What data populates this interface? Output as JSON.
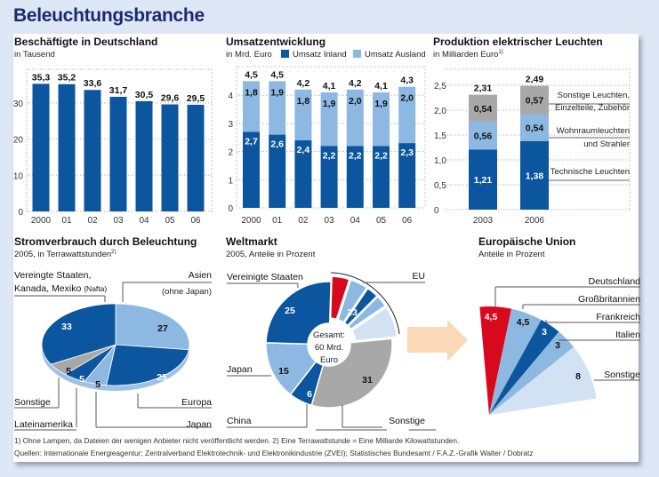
{
  "title": "Beleuchtungsbranche",
  "colors": {
    "dark_blue": "#0b569e",
    "light_blue": "#8db8e2",
    "gray": "#a8a8a8",
    "pale_blue": "#d3e2f3",
    "red": "#d8091d",
    "arrow": "#fbd9b7",
    "background": "#dde7f6"
  },
  "chart_data": [
    {
      "type": "bar",
      "title": "Beschäftigte in Deutschland",
      "subtitle": "in Tausend",
      "categories": [
        "2000",
        "01",
        "02",
        "03",
        "04",
        "05",
        "06"
      ],
      "values": [
        35.3,
        35.2,
        33.6,
        31.7,
        30.5,
        29.6,
        29.5
      ],
      "value_labels": [
        "35,3",
        "35,2",
        "33,6",
        "31,7",
        "30,5",
        "29,6",
        "29,5"
      ],
      "yticks": [
        "0",
        "10",
        "20",
        "30"
      ],
      "ylim": [
        0,
        40
      ],
      "grid": true
    },
    {
      "type": "bar",
      "stacked": true,
      "title": "Umsatzentwicklung",
      "subtitle": "in Mrd. Euro",
      "categories": [
        "2000",
        "01",
        "02",
        "03",
        "04",
        "05",
        "06"
      ],
      "series": [
        {
          "name": "Umsatz Inland",
          "values": [
            2.7,
            2.6,
            2.4,
            2.2,
            2.2,
            2.2,
            2.3
          ],
          "labels": [
            "2,7",
            "2,6",
            "2,4",
            "2,2",
            "2,2",
            "2,2",
            "2,3"
          ]
        },
        {
          "name": "Umsatz Ausland",
          "values": [
            1.8,
            1.9,
            1.8,
            1.9,
            2.0,
            1.9,
            2.0
          ],
          "labels": [
            "1,8",
            "1,9",
            "1,8",
            "1,9",
            "2,0",
            "1,9",
            "2,0"
          ]
        }
      ],
      "totals": [
        "4,5",
        "4,5",
        "4,2",
        "4,1",
        "4,2",
        "4,1",
        "4,3"
      ],
      "yticks": [
        "0",
        "1",
        "2",
        "3",
        "4"
      ],
      "ylim": [
        0,
        5
      ],
      "legend": "top",
      "grid": true
    },
    {
      "type": "bar",
      "stacked": true,
      "title": "Produktion elektrischer Leuchten",
      "subtitle": "in Milliarden Euro",
      "subtitle_footnote": "1)",
      "categories": [
        "2003",
        "2006"
      ],
      "series": [
        {
          "name": "Technische Leuchten",
          "name_lines": [
            "Technische Leuchten"
          ],
          "values": [
            1.21,
            1.38
          ],
          "labels": [
            "1,21",
            "1,38"
          ]
        },
        {
          "name": "Wohnraumleuchten und Strahler",
          "name_lines": [
            "Wohnraumleuchten",
            "und Strahler"
          ],
          "values": [
            0.56,
            0.54
          ],
          "labels": [
            "0,56",
            "0,54"
          ]
        },
        {
          "name": "Sonstige Leuchten, Einzelteile, Zubehör",
          "name_lines": [
            "Sonstige Leuchten,",
            "Einzelteile, Zubehör"
          ],
          "values": [
            0.54,
            0.57
          ],
          "labels": [
            "0,54",
            "0,57"
          ]
        }
      ],
      "totals": [
        "2,31",
        "2,49"
      ],
      "yticks": [
        "0",
        "0,5",
        "1,0",
        "1,5",
        "2,0",
        "2,5"
      ],
      "ylim": [
        0,
        2.8
      ],
      "legend": "right",
      "grid": true
    },
    {
      "type": "pie",
      "title": "Stromverbrauch durch Beleuchtung",
      "subtitle": "2005, in Terrawattstunden",
      "subtitle_footnote": "2)",
      "slices": [
        {
          "name": "Asien",
          "note": "(ohne Japan)",
          "value": 27
        },
        {
          "name": "Europa",
          "value": 25
        },
        {
          "name": "Japan",
          "value": 5
        },
        {
          "name": "Lateinamerika",
          "value": 5
        },
        {
          "name": "Sonstige",
          "value": 5
        },
        {
          "name": "Vereingte Staaten,",
          "name2": "Kanada, Mexiko",
          "note": "(Nafta)",
          "value": 33
        }
      ]
    },
    {
      "type": "pie",
      "donut": true,
      "title": "Weltmarkt",
      "subtitle": "2005, Anteile in Prozent",
      "center_text": [
        "Gesamt:",
        "60 Mrd.",
        "Euro"
      ],
      "slices": [
        {
          "name": "EU",
          "value": 23
        },
        {
          "name": "Sonstige",
          "value": 31
        },
        {
          "name": "China",
          "value": 6
        },
        {
          "name": "Japan",
          "value": 15
        },
        {
          "name": "Vereinigte Staaten",
          "value": 25
        }
      ]
    },
    {
      "type": "pie",
      "title": "Europäische Union",
      "subtitle": "Anteile in Prozent",
      "slices": [
        {
          "name": "Deutschland",
          "value": 4.5,
          "label": "4,5"
        },
        {
          "name": "Großbritannien",
          "value": 4.5,
          "label": "4,5"
        },
        {
          "name": "Frankreich",
          "value": 3,
          "label": "3"
        },
        {
          "name": "Italien",
          "value": 3,
          "label": "3"
        },
        {
          "name": "Sonstige",
          "value": 8,
          "label": "8"
        }
      ]
    }
  ],
  "footnotes": [
    "1) Ohne Lampen, da Dateien der wenigen Anbieter nicht veröffentlicht werden.  2) Eine Terrawattstunde = Eine Milliarde Kilowattstunden.",
    "Quellen: Internationale Energieagentur; Zentralverband Elektrotechnik- und Elektronikindustrie (ZVEI); Statistisches Bundesamt / F.A.Z.-Grafik Walter / Dobratz"
  ]
}
